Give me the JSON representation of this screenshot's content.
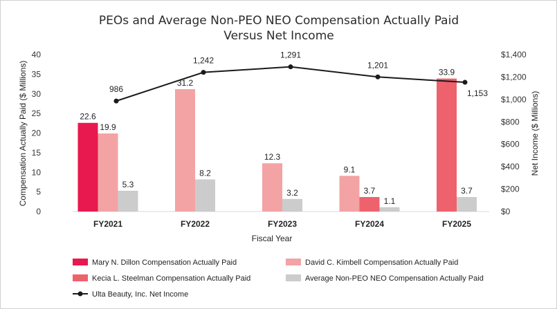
{
  "chart_data": {
    "type": "bar",
    "title_line1": "PEOs and Average Non-PEO NEO Compensation Actually Paid",
    "title_line2": "Versus Net Income",
    "xlabel": "Fiscal Year",
    "ylabel": "Compensation Actually Paid ($ Millions)",
    "y2label": "Net Income ($ Millions)",
    "ylim": [
      0,
      40
    ],
    "y2lim": [
      0,
      1400
    ],
    "yticks": [
      "0",
      "5",
      "10",
      "15",
      "20",
      "25",
      "30",
      "35",
      "40"
    ],
    "y2ticks": [
      "$0",
      "$200",
      "$400",
      "$600",
      "$800",
      "$1,000",
      "$1,200",
      "$1,400"
    ],
    "categories": [
      "FY2021",
      "FY2022",
      "FY2023",
      "FY2024",
      "FY2025"
    ],
    "series": [
      {
        "name": "Mary N. Dillon Compensation Actually Paid",
        "color": "#e8194f",
        "values": [
          22.6,
          null,
          null,
          null,
          null
        ],
        "labels": [
          "22.6",
          "",
          "",
          "",
          ""
        ]
      },
      {
        "name": "David C. Kimbell Compensation Actually Paid",
        "color": "#f3a3a3",
        "values": [
          19.9,
          31.2,
          12.3,
          9.1,
          null
        ],
        "labels": [
          "19.9",
          "31.2",
          "12.3",
          "9.1",
          ""
        ]
      },
      {
        "name": "Kecia L. Steelman Compensation Actually Paid",
        "color": "#ee626d",
        "values": [
          null,
          null,
          null,
          3.7,
          33.9
        ],
        "labels": [
          "",
          "",
          "",
          "3.7",
          "33.9"
        ]
      },
      {
        "name": "Average Non-PEO NEO Compensation Actually Paid",
        "color": "#cccccc",
        "values": [
          5.3,
          8.2,
          3.2,
          1.1,
          3.7
        ],
        "labels": [
          "5.3",
          "8.2",
          "3.2",
          "1.1",
          "3.7"
        ]
      }
    ],
    "line": {
      "name": "Ulta Beauty, Inc. Net Income",
      "color": "#1a1a1a",
      "values": [
        986,
        1242,
        1291,
        1201,
        1153
      ],
      "labels": [
        "986",
        "1,242",
        "1,291",
        "1,201",
        "1,153"
      ]
    }
  }
}
